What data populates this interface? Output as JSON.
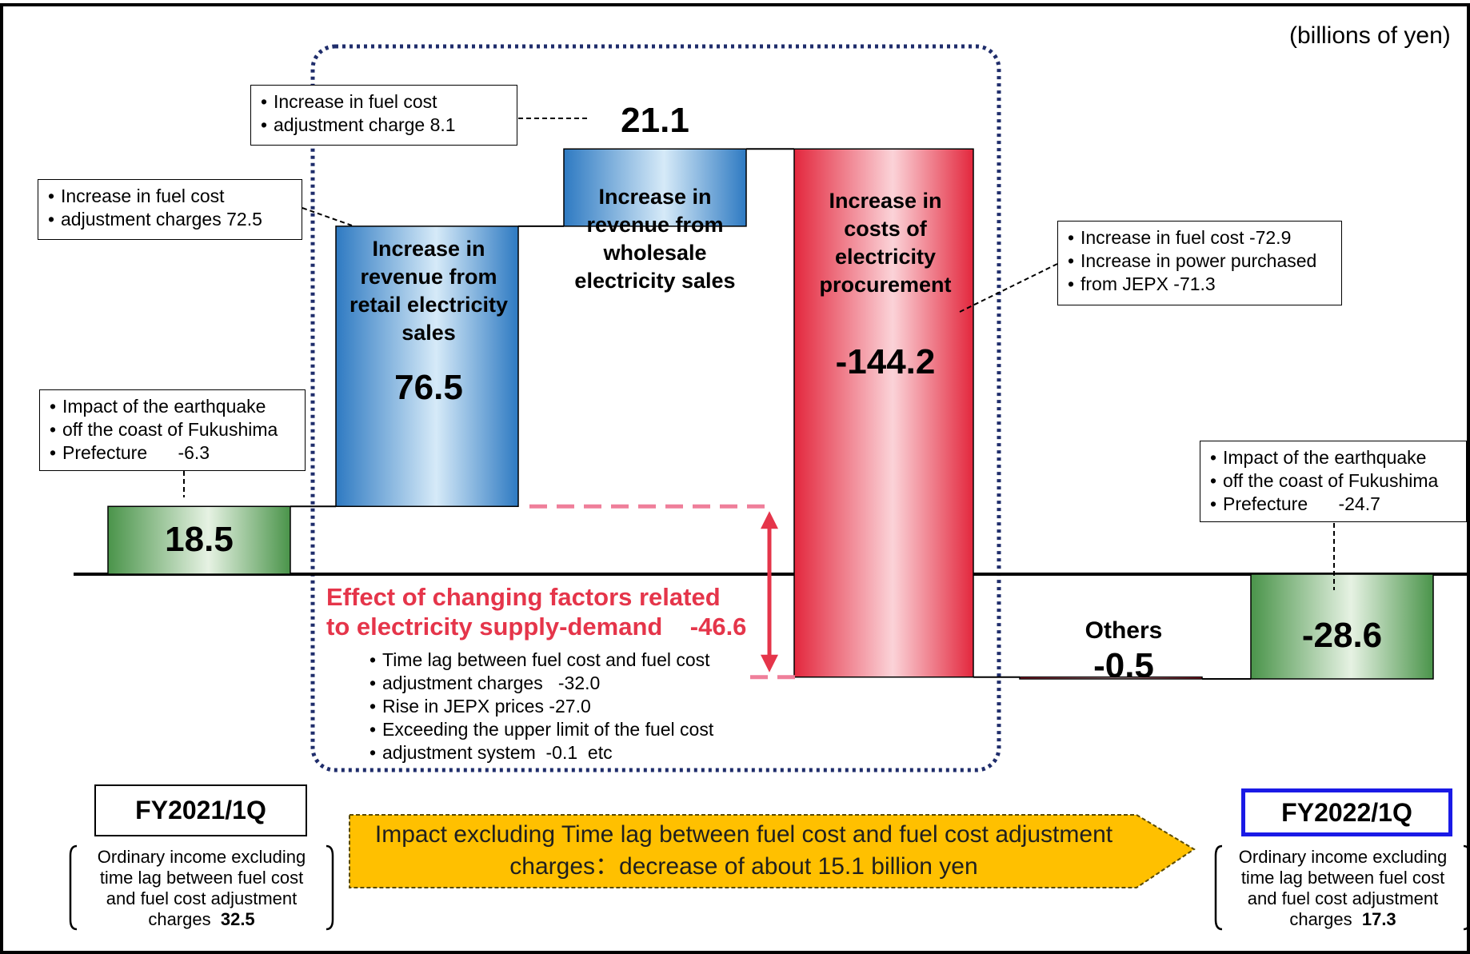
{
  "unit_label": "(billions of yen)",
  "chart_data": {
    "type": "waterfall",
    "unit": "billions of yen",
    "steps": [
      {
        "label": "FY2021/1Q",
        "value": 18.5,
        "kind": "total",
        "color": "#5aa05a"
      },
      {
        "label": "Increase in revenue from retail electricity sales",
        "value": 76.5,
        "kind": "delta",
        "color": "#3a86c8"
      },
      {
        "label": "Increase in revenue from wholesale electricity sales",
        "value": 21.1,
        "kind": "delta",
        "color": "#3a86c8"
      },
      {
        "label": "Increase in costs of electricity procurement",
        "value": -144.2,
        "kind": "delta",
        "color": "#e53a4a"
      },
      {
        "label": "Others",
        "value": -0.5,
        "kind": "delta",
        "color": "#e53a4a"
      },
      {
        "label": "FY2022/1Q",
        "value": -28.6,
        "kind": "total",
        "color": "#5aa05a"
      }
    ],
    "effect_value": -46.6
  },
  "values": {
    "start": "18.5",
    "retail": "76.5",
    "wholesale": "21.1",
    "procurement": "-144.2",
    "others": "-0.5",
    "end": "-28.6"
  },
  "labels": {
    "retail": [
      "Increase in",
      "revenue from",
      "retail electricity",
      "sales"
    ],
    "wholesale": [
      "Increase in",
      "revenue from",
      "wholesale",
      "electricity sales"
    ],
    "procurement": [
      "Increase in",
      "costs of",
      "electricity",
      "procurement"
    ],
    "others": "Others"
  },
  "callouts": {
    "wholesale_note": [
      "Increase in fuel cost",
      "adjustment charge  8.1"
    ],
    "retail_note": [
      "Increase in fuel cost",
      "adjustment charges  72.5"
    ],
    "procurement_note": [
      "Increase in fuel cost  -72.9",
      "Increase in power purchased",
      "from JEPX   -71.3"
    ],
    "start_note": [
      "Impact of the earthquake",
      "off the coast of Fukushima",
      "Prefecture      -6.3"
    ],
    "end_note": [
      "Impact of the earthquake",
      "off the coast of Fukushima",
      "Prefecture      -24.7"
    ]
  },
  "effect": {
    "title_line1": "Effect of changing factors related",
    "title_line2": "to electricity supply-demand    -46.6",
    "items": [
      "Time lag between fuel cost and fuel cost",
      "adjustment charges   -32.0",
      "Rise in JEPX prices  -27.0",
      "Exceeding the upper limit of the fuel cost",
      "adjustment system  -0.1  etc"
    ]
  },
  "periods": {
    "start": "FY2021/1Q",
    "end": "FY2022/1Q"
  },
  "notes": {
    "start_lines": [
      "Ordinary income excluding",
      "time lag between fuel cost",
      "and fuel cost adjustment"
    ],
    "start_last_prefix": "charges",
    "start_value": "32.5",
    "end_lines": [
      "Ordinary income excluding",
      "time lag between fuel cost",
      "and fuel cost adjustment"
    ],
    "end_last_prefix": "charges",
    "end_value": "17.3"
  },
  "impact_arrow": {
    "line1": "Impact excluding Time lag between fuel cost and fuel cost adjustment",
    "line2": "charges：decrease of about 15.1 billion yen",
    "color": "#ffc000"
  },
  "colors": {
    "blue": "#3a86c8",
    "red": "#e53a4a",
    "green": "#5aa05a",
    "effect_red": "#e5354a",
    "dotted_navy": "#1f2d6b",
    "end_box_blue": "#1a1ae6"
  }
}
